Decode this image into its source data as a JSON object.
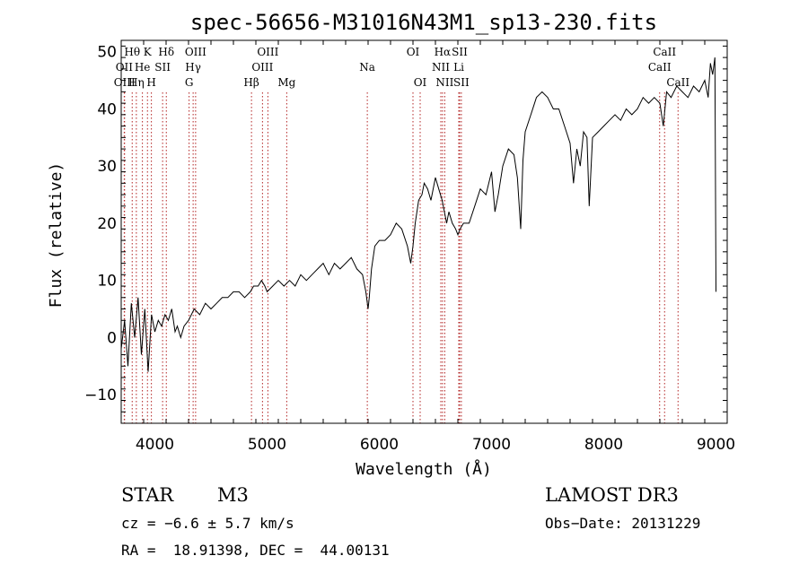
{
  "chart_data": {
    "type": "line",
    "title": "spec-56656-M31016N43M1_sp13-230.fits",
    "xlabel": "Wavelength (Å)",
    "ylabel": "Flux (relative)",
    "xlim": [
      3700,
      9100
    ],
    "ylim": [
      -15,
      52
    ],
    "x_ticks": [
      4000,
      5000,
      6000,
      7000,
      8000,
      9000
    ],
    "y_ticks": [
      -10,
      0,
      10,
      20,
      30,
      40,
      50
    ],
    "grid": false,
    "series": [
      {
        "name": "spectrum",
        "x": [
          3700,
          3730,
          3760,
          3790,
          3820,
          3850,
          3880,
          3910,
          3940,
          3970,
          4000,
          4030,
          4060,
          4090,
          4120,
          4150,
          4180,
          4200,
          4230,
          4260,
          4300,
          4350,
          4400,
          4450,
          4500,
          4550,
          4600,
          4650,
          4700,
          4750,
          4800,
          4850,
          4880,
          4920,
          4950,
          4980,
          5000,
          5050,
          5100,
          5150,
          5200,
          5250,
          5300,
          5350,
          5400,
          5450,
          5500,
          5550,
          5600,
          5650,
          5700,
          5750,
          5800,
          5850,
          5880,
          5900,
          5910,
          5930,
          5960,
          6000,
          6050,
          6100,
          6150,
          6200,
          6250,
          6280,
          6300,
          6320,
          6350,
          6380,
          6400,
          6430,
          6460,
          6500,
          6530,
          6560,
          6580,
          6600,
          6620,
          6650,
          6680,
          6700,
          6720,
          6750,
          6800,
          6850,
          6900,
          6950,
          7000,
          7030,
          7060,
          7100,
          7150,
          7200,
          7230,
          7260,
          7280,
          7300,
          7350,
          7400,
          7450,
          7500,
          7550,
          7600,
          7650,
          7700,
          7730,
          7760,
          7790,
          7820,
          7850,
          7870,
          7900,
          7950,
          8000,
          8050,
          8100,
          8150,
          8200,
          8250,
          8300,
          8350,
          8400,
          8450,
          8500,
          8530,
          8560,
          8600,
          8650,
          8700,
          8750,
          8800,
          8850,
          8900,
          8930,
          8950,
          8970,
          8990,
          9000
        ],
        "values": [
          -2,
          3,
          -5,
          6,
          0,
          7,
          -3,
          5,
          -6,
          4,
          1,
          3,
          2,
          4,
          3,
          5,
          1,
          2,
          0,
          2,
          3,
          5,
          4,
          6,
          5,
          6,
          7,
          7,
          8,
          8,
          7,
          8,
          9,
          9,
          10,
          9,
          8,
          9,
          10,
          9,
          10,
          9,
          11,
          10,
          11,
          12,
          13,
          11,
          13,
          12,
          13,
          14,
          12,
          11,
          8,
          5,
          7,
          12,
          16,
          17,
          17,
          18,
          20,
          19,
          16,
          13,
          16,
          20,
          24,
          25,
          27,
          26,
          24,
          28,
          26,
          24,
          22,
          20,
          22,
          20,
          19,
          18,
          19,
          20,
          20,
          23,
          26,
          25,
          29,
          22,
          25,
          30,
          33,
          32,
          28,
          19,
          31,
          36,
          39,
          42,
          43,
          42,
          40,
          40,
          37,
          34,
          27,
          33,
          30,
          36,
          35,
          23,
          35,
          36,
          37,
          38,
          39,
          38,
          40,
          39,
          40,
          42,
          41,
          42,
          41,
          37,
          43,
          42,
          44,
          43,
          42,
          44,
          43,
          45,
          42,
          48,
          46,
          49,
          8
        ]
      }
    ],
    "lines": [
      {
        "label": "Hθ",
        "x": 3798,
        "row": 1
      },
      {
        "label": "OII",
        "x": 3727,
        "row": 2
      },
      {
        "label": "OIII",
        "x": 3730,
        "row": 3
      },
      {
        "label": "Hη",
        "x": 3835,
        "row": 3
      },
      {
        "label": "He",
        "x": 3889,
        "row": 2
      },
      {
        "label": "K",
        "x": 3934,
        "row": 1
      },
      {
        "label": "H",
        "x": 3969,
        "row": 3
      },
      {
        "label": "SII",
        "x": 4069,
        "row": 2
      },
      {
        "label": "Hδ",
        "x": 4102,
        "row": 1
      },
      {
        "label": "G",
        "x": 4305,
        "row": 3
      },
      {
        "label": "Hγ",
        "x": 4341,
        "row": 2
      },
      {
        "label": "OIII",
        "x": 4363,
        "row": 1
      },
      {
        "label": "Hβ",
        "x": 4861,
        "row": 3
      },
      {
        "label": "OIII",
        "x": 4959,
        "row": 2
      },
      {
        "label": "OIII",
        "x": 5007,
        "row": 1
      },
      {
        "label": "Mg",
        "x": 5175,
        "row": 3
      },
      {
        "label": "Na",
        "x": 5893,
        "row": 2
      },
      {
        "label": "OI",
        "x": 6300,
        "row": 1
      },
      {
        "label": "OI",
        "x": 6364,
        "row": 3
      },
      {
        "label": "NII",
        "x": 6548,
        "row": 2
      },
      {
        "label": "Hα",
        "x": 6563,
        "row": 1
      },
      {
        "label": "NII",
        "x": 6583,
        "row": 3
      },
      {
        "label": "Li",
        "x": 6708,
        "row": 2
      },
      {
        "label": "SII",
        "x": 6716,
        "row": 1
      },
      {
        "label": "SII",
        "x": 6731,
        "row": 3
      },
      {
        "label": "CaII",
        "x": 8498,
        "row": 2
      },
      {
        "label": "CaII",
        "x": 8542,
        "row": 1
      },
      {
        "label": "CaII",
        "x": 8662,
        "row": 3
      }
    ]
  },
  "info": {
    "class": "STAR",
    "subclass": "M3",
    "survey": "LAMOST DR3",
    "cz": "cz = −6.6 ± 5.7 km/s",
    "obs_date": "Obs−Date: 20131229",
    "coords": "RA =  18.91398, DEC =  44.00131"
  }
}
